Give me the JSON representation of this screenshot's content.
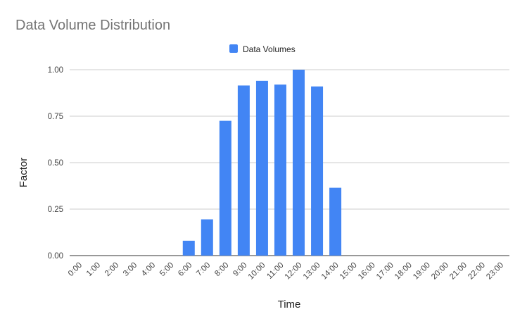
{
  "chart_data": {
    "type": "bar",
    "title": "Data Volume Distribution",
    "xlabel": "Time",
    "ylabel": "Factor",
    "legend_position": "top",
    "grid": true,
    "ylim": [
      0,
      1
    ],
    "yticks": [
      "0.00",
      "0.25",
      "0.50",
      "0.75",
      "1.00"
    ],
    "categories": [
      "0:00",
      "1:00",
      "2:00",
      "3:00",
      "4:00",
      "5:00",
      "6:00",
      "7:00",
      "8:00",
      "9:00",
      "10:00",
      "11:00",
      "12:00",
      "13:00",
      "14:00",
      "15:00",
      "16:00",
      "17:00",
      "18:00",
      "19:00",
      "20:00",
      "21:00",
      "22:00",
      "23:00"
    ],
    "series": [
      {
        "name": "Data Volumes",
        "color": "#4285f4",
        "values": [
          0,
          0,
          0,
          0,
          0,
          0,
          0.08,
          0.195,
          0.725,
          0.915,
          0.94,
          0.92,
          1.0,
          0.91,
          0.365,
          0,
          0,
          0,
          0,
          0,
          0,
          0,
          0,
          0
        ]
      }
    ]
  }
}
